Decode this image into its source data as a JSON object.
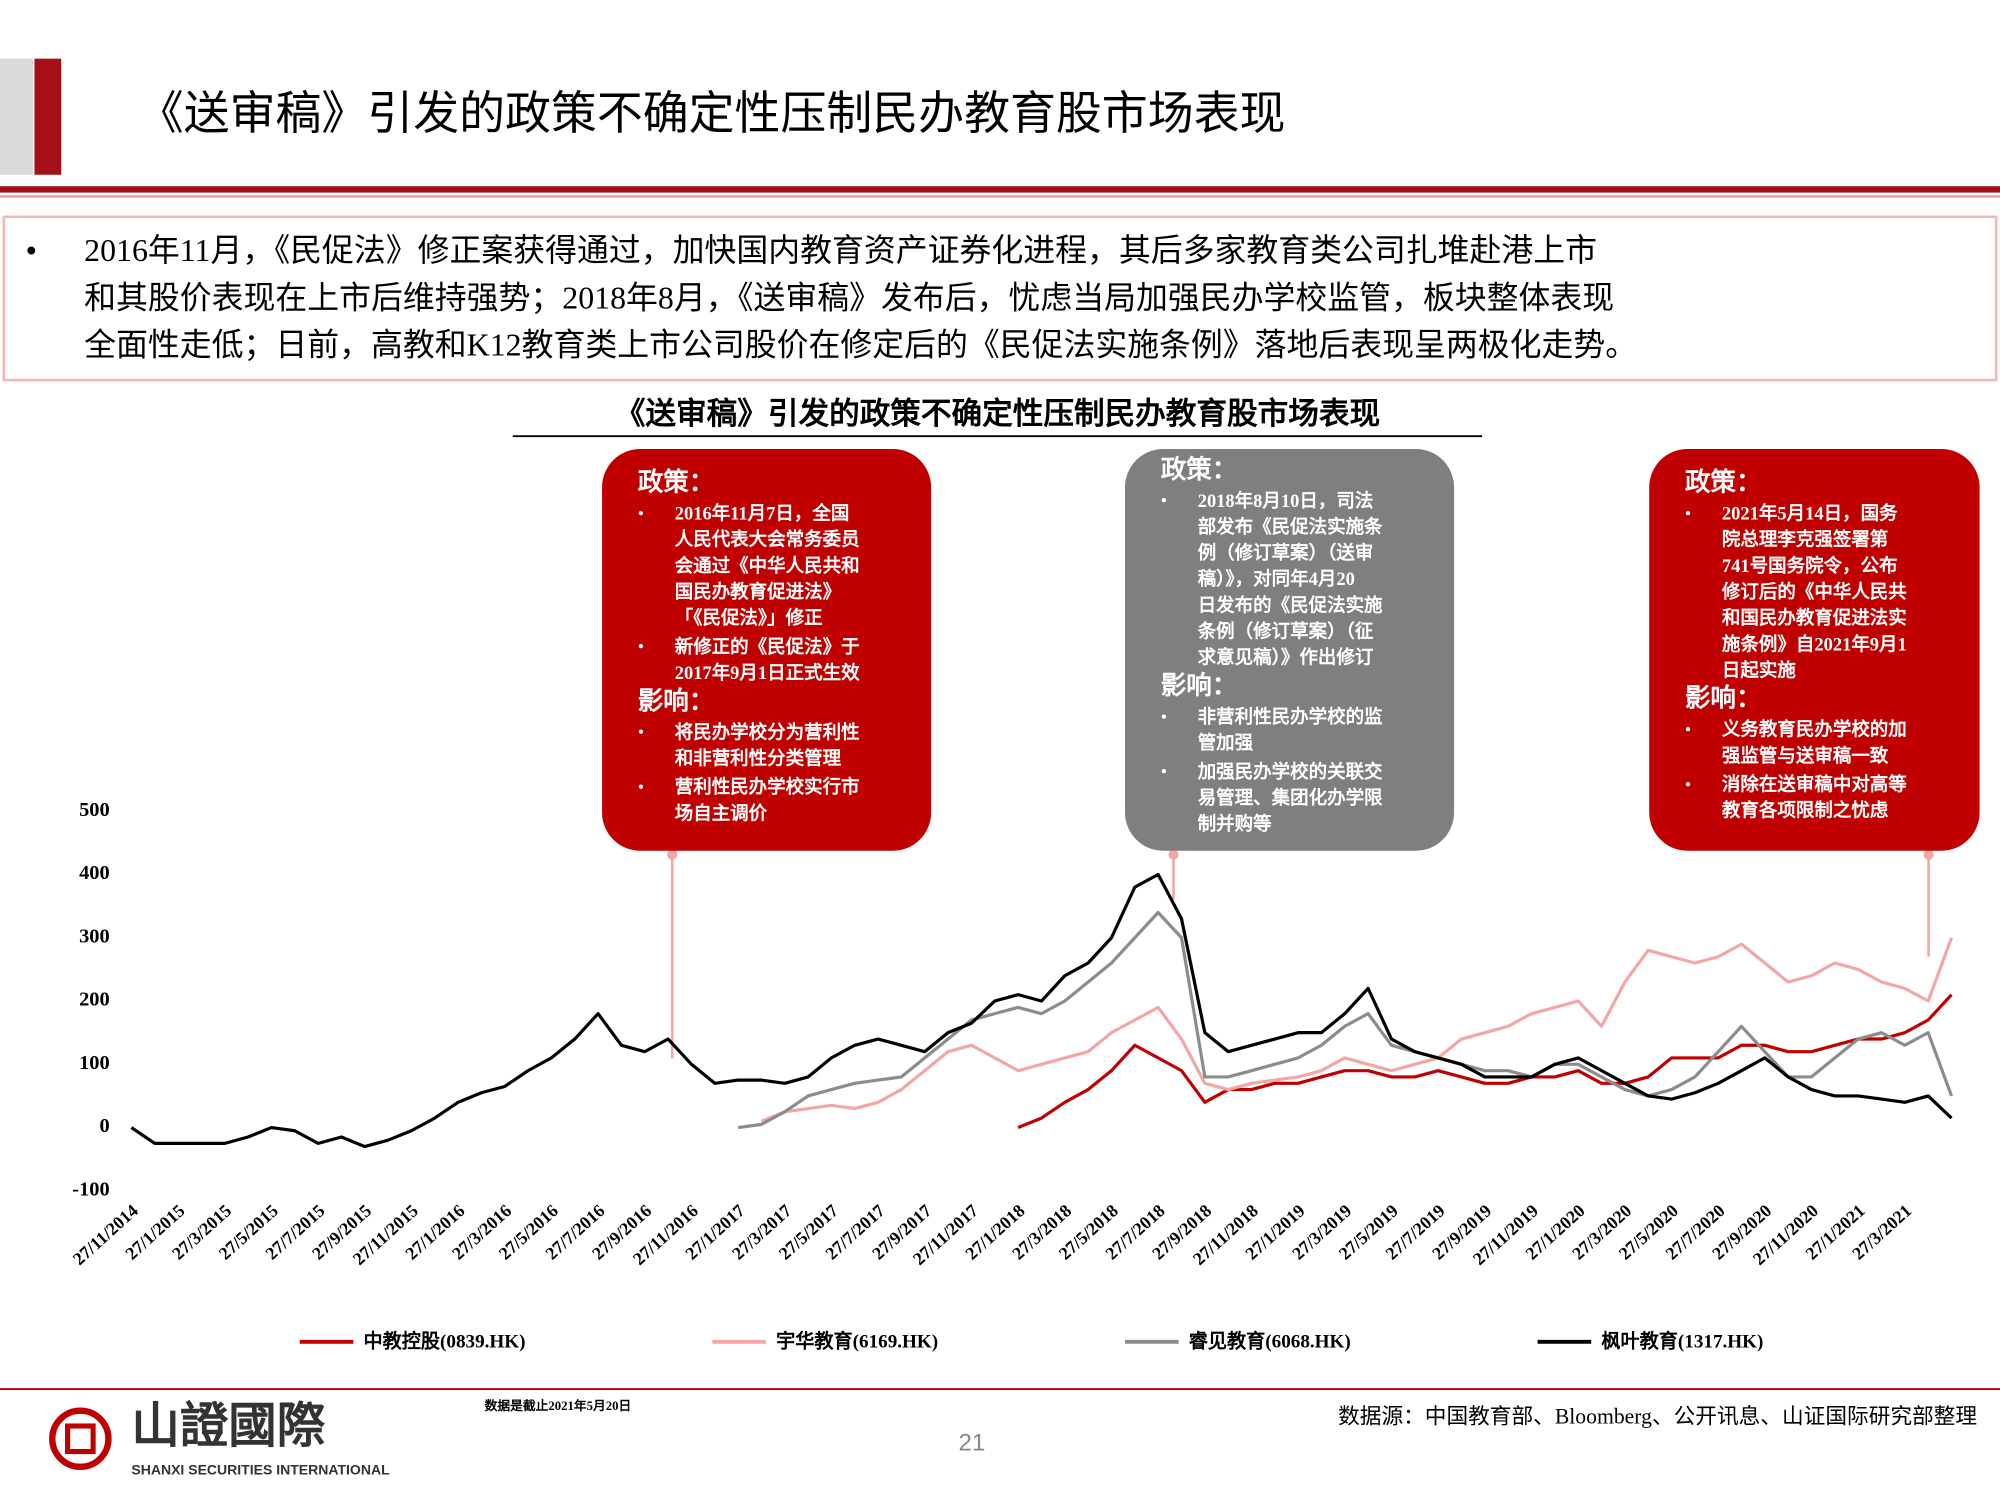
{
  "header": {
    "title": "《送审稿》引发的政策不确定性压制民办教育股市场表现"
  },
  "summary": {
    "lines": [
      "2016年11月，《民促法》修正案获得通过，加快国内教育资产证券化进程，其后多家教育类公司扎堆赴港上市",
      "和其股价表现在上市后维持强势；2018年8月，《送审稿》发布后，忧虑当局加强民办学校监管，板块整体表现",
      "全面性走低；日前，高教和K12教育类上市公司股价在修定后的《民促法实施条例》落地后表现呈两极化走势。"
    ]
  },
  "chart_data": {
    "type": "line",
    "title": "《送审稿》引发的政策不确定性压制民办教育股市场表现",
    "categories": [
      "27/11/2014",
      null,
      "27/1/2015",
      null,
      "27/3/2015",
      null,
      "27/5/2015",
      null,
      "27/7/2015",
      null,
      "27/9/2015",
      null,
      "27/11/2015",
      null,
      "27/1/2016",
      null,
      "27/3/2016",
      null,
      "27/5/2016",
      null,
      "27/7/2016",
      null,
      "27/9/2016",
      null,
      "27/11/2016",
      null,
      "27/1/2017",
      null,
      "27/3/2017",
      null,
      "27/5/2017",
      null,
      "27/7/2017",
      null,
      "27/9/2017",
      null,
      "27/11/2017",
      null,
      "27/1/2018",
      null,
      "27/3/2018",
      null,
      "27/5/2018",
      null,
      "27/7/2018",
      null,
      "27/9/2018",
      null,
      "27/11/2018",
      null,
      "27/1/2019",
      null,
      "27/3/2019",
      null,
      "27/5/2019",
      null,
      "27/7/2019",
      null,
      "27/9/2019",
      null,
      "27/11/2019",
      null,
      "27/1/2020",
      null,
      "27/3/2020",
      null,
      "27/5/2020",
      null,
      "27/7/2020",
      null,
      "27/9/2020",
      null,
      "27/11/2020",
      null,
      "27/1/2021",
      null,
      "27/3/2021",
      null,
      null
    ],
    "series": [
      {
        "name": "中教控股(0839.HK)",
        "color": "#c00000",
        "values": [
          null,
          null,
          null,
          null,
          null,
          null,
          null,
          null,
          null,
          null,
          null,
          null,
          null,
          null,
          null,
          null,
          null,
          null,
          null,
          null,
          null,
          null,
          null,
          null,
          null,
          null,
          null,
          null,
          null,
          null,
          null,
          null,
          null,
          null,
          null,
          null,
          null,
          null,
          0,
          15,
          40,
          60,
          90,
          130,
          110,
          90,
          40,
          60,
          60,
          70,
          70,
          80,
          90,
          90,
          80,
          80,
          90,
          80,
          70,
          70,
          80,
          80,
          90,
          70,
          70,
          80,
          110,
          110,
          110,
          130,
          130,
          120,
          120,
          130,
          140,
          140,
          150,
          170,
          210
        ]
      },
      {
        "name": "宇华教育(6169.HK)",
        "color": "#f4a6a6",
        "values": [
          null,
          null,
          null,
          null,
          null,
          null,
          null,
          null,
          null,
          null,
          null,
          null,
          null,
          null,
          null,
          null,
          null,
          null,
          null,
          null,
          null,
          null,
          null,
          null,
          null,
          null,
          null,
          10,
          25,
          30,
          35,
          30,
          40,
          60,
          90,
          120,
          130,
          110,
          90,
          100,
          110,
          120,
          150,
          170,
          190,
          140,
          70,
          60,
          70,
          75,
          80,
          90,
          110,
          100,
          90,
          100,
          110,
          140,
          150,
          160,
          180,
          190,
          200,
          160,
          230,
          280,
          270,
          260,
          270,
          290,
          260,
          230,
          240,
          260,
          250,
          230,
          220,
          200,
          300
        ]
      },
      {
        "name": "睿见教育(6068.HK)",
        "color": "#8c8c8c",
        "values": [
          null,
          null,
          null,
          null,
          null,
          null,
          null,
          null,
          null,
          null,
          null,
          null,
          null,
          null,
          null,
          null,
          null,
          null,
          null,
          null,
          null,
          null,
          null,
          null,
          null,
          null,
          0,
          5,
          25,
          50,
          60,
          70,
          75,
          80,
          110,
          140,
          170,
          180,
          190,
          180,
          200,
          230,
          260,
          300,
          340,
          300,
          80,
          80,
          90,
          100,
          110,
          130,
          160,
          180,
          130,
          120,
          110,
          100,
          90,
          90,
          80,
          100,
          100,
          80,
          60,
          50,
          60,
          80,
          120,
          160,
          120,
          80,
          80,
          110,
          140,
          150,
          130,
          150,
          50
        ]
      },
      {
        "name": "枫叶教育(1317.HK)",
        "color": "#000000",
        "values": [
          0,
          -25,
          -25,
          -25,
          -25,
          -15,
          0,
          -5,
          -25,
          -15,
          -30,
          -20,
          -5,
          15,
          40,
          55,
          65,
          90,
          110,
          140,
          180,
          130,
          120,
          140,
          100,
          70,
          75,
          75,
          70,
          80,
          110,
          130,
          140,
          130,
          120,
          150,
          165,
          200,
          210,
          200,
          240,
          260,
          300,
          380,
          400,
          330,
          150,
          120,
          130,
          140,
          150,
          150,
          180,
          220,
          140,
          120,
          110,
          100,
          80,
          80,
          80,
          100,
          110,
          90,
          70,
          50,
          45,
          55,
          70,
          90,
          110,
          80,
          60,
          50,
          50,
          45,
          40,
          50,
          15
        ]
      }
    ],
    "ylim": [
      -100,
      500
    ],
    "yticks": [
      -100,
      0,
      100,
      200,
      300,
      400,
      500
    ],
    "annotations": [
      {
        "color": "#c00000",
        "heading1": "政策：",
        "items1": [
          [
            "2016年11月7日，全国",
            "人民代表大会常务委员",
            "会通过《中华人民共和",
            "国民办教育促进法》",
            "「《民促法》」修正"
          ],
          [
            "新修正的《民促法》于",
            "2017年9月1日正式生效"
          ]
        ],
        "heading2": "影响：",
        "items2": [
          [
            "将民办学校分为营利性",
            "和非营利性分类管理"
          ],
          [
            "营利性民办学校实行市",
            "场自主调价"
          ]
        ]
      },
      {
        "color": "#7f7f7f",
        "heading1": "政策：",
        "items1": [
          [
            "2018年8月10日，司法",
            "部发布《民促法实施条",
            "例（修订草案）（送审",
            "稿）》，对同年4月20",
            "日发布的《民促法实施",
            "条例（修订草案）（征",
            "求意见稿）》作出修订"
          ]
        ],
        "heading2": "影响：",
        "items2": [
          [
            "非营利性民办学校的监",
            "管加强"
          ],
          [
            "加强民办学校的关联交",
            "易管理、集团化办学限",
            "制并购等"
          ]
        ]
      },
      {
        "color": "#c00000",
        "heading1": "政策：",
        "items1": [
          [
            "2021年5月14日，国务",
            "院总理李克强签署第",
            "741号国务院令，公布",
            "修订后的《中华人民共",
            "和国民办教育促进法实",
            "施条例》自2021年9月1",
            "日起实施"
          ]
        ],
        "heading2": "影响：",
        "items2": [
          [
            "义务教育民办学校的加",
            "强监管与送审稿一致"
          ],
          [
            "消除在送审稿中对高等",
            "教育各项限制之忧虑"
          ]
        ]
      }
    ]
  },
  "footer": {
    "note": "数据是截止2021年5月20日",
    "source": "数据源：中国教育部、Bloomberg、公开讯息、山证国际研究部整理",
    "page": 21,
    "logo": "山證國際",
    "logo_en": "SHANXI SECURITIES INTERNATIONAL"
  }
}
